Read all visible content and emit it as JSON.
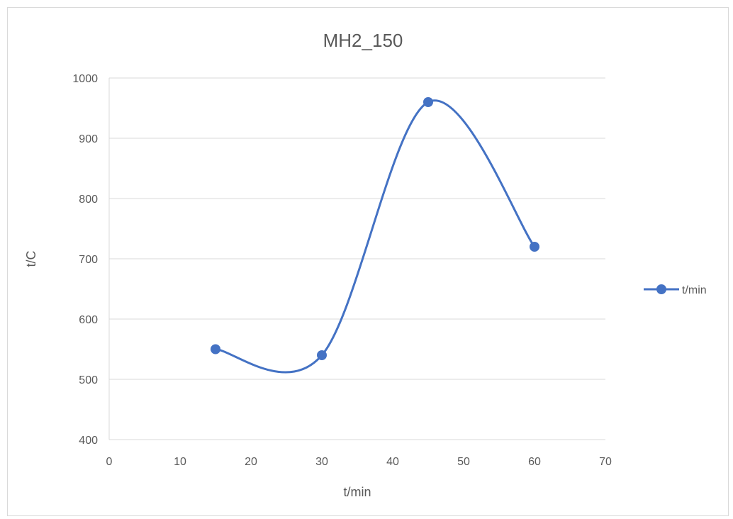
{
  "chart_data": {
    "type": "scatter",
    "title": "MH2_150",
    "xlabel": "t/min",
    "ylabel": "t/C",
    "xlim": [
      0,
      70
    ],
    "ylim": [
      400,
      1000
    ],
    "x_ticks": [
      0,
      10,
      20,
      30,
      40,
      50,
      60,
      70
    ],
    "y_ticks": [
      400,
      500,
      600,
      700,
      800,
      900,
      1000
    ],
    "grid": "horizontal",
    "legend_position": "right",
    "smooth": true,
    "series": [
      {
        "name": "t/min",
        "color": "#4472c4",
        "x": [
          15,
          30,
          45,
          60
        ],
        "y": [
          550,
          540,
          960,
          720
        ]
      }
    ]
  }
}
